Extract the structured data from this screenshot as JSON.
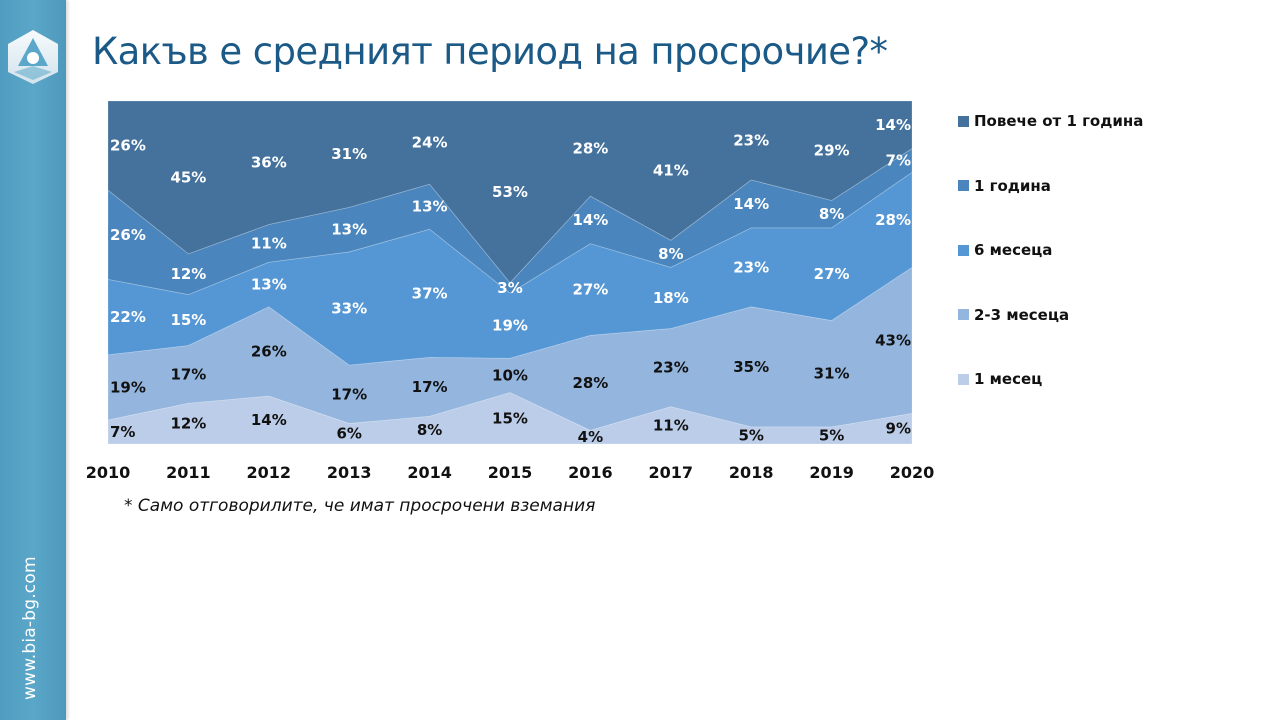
{
  "slide": {
    "title": "Какъв е средният период на просрочие?*",
    "footnote": "* Само отговорилите, че имат просрочени вземания",
    "site_url": "www.bia-bg.com",
    "logo_icon": "bia-logo-icon",
    "sidebar_color": "#5aa7c9",
    "title_color": "#1b5a86"
  },
  "chart_data": {
    "type": "area",
    "stacked": "percent",
    "title": "Какъв е средният период на просрочие?*",
    "xlabel": "",
    "ylabel": "",
    "ylim": [
      0,
      100
    ],
    "grid": false,
    "legend_position": "right",
    "categories": [
      "2010",
      "2011",
      "2012",
      "2013",
      "2014",
      "2015",
      "2016",
      "2017",
      "2018",
      "2019",
      "2020"
    ],
    "series": [
      {
        "name": "1 месец",
        "color": "#bccde9",
        "label_color": "#111111",
        "values": [
          7,
          12,
          14,
          6,
          8,
          15,
          4,
          11,
          5,
          5,
          9
        ],
        "labels": [
          "7%",
          "12%",
          "14%",
          "6%",
          "8%",
          "15%",
          "4%",
          "11%",
          "5%",
          "5%",
          "9%"
        ]
      },
      {
        "name": "2-3 месеца",
        "color": "#93b5de",
        "label_color": "#111111",
        "values": [
          19,
          17,
          26,
          17,
          17,
          10,
          28,
          23,
          35,
          31,
          43
        ],
        "labels": [
          "19%",
          "17%",
          "26%",
          "17%",
          "17%",
          "10%",
          "28%",
          "23%",
          "35%",
          "31%",
          "43%"
        ]
      },
      {
        "name": "6 месеца",
        "color": "#5597d4",
        "label_color": "#ffffff",
        "values": [
          22,
          15,
          13,
          33,
          37,
          19,
          27,
          18,
          23,
          27,
          28
        ],
        "labels": [
          "22%",
          "15%",
          "13%",
          "33%",
          "37%",
          "19%",
          "27%",
          "18%",
          "23%",
          "27%",
          "28%"
        ]
      },
      {
        "name": "1 година",
        "color": "#4a86bd",
        "label_color": "#ffffff",
        "values": [
          26,
          12,
          11,
          13,
          13,
          3,
          14,
          8,
          14,
          8,
          7
        ],
        "labels": [
          "26%",
          "12%",
          "11%",
          "13%",
          "13%",
          "3%",
          "14%",
          "8%",
          "14%",
          "8%",
          "7%"
        ]
      },
      {
        "name": "Повече от 1 година",
        "color": "#44729d",
        "label_color": "#ffffff",
        "values": [
          26,
          45,
          36,
          31,
          24,
          53,
          28,
          41,
          23,
          29,
          14
        ],
        "labels": [
          "26%",
          "45%",
          "36%",
          "31%",
          "24%",
          "53%",
          "28%",
          "41%",
          "23%",
          "29%",
          "14%"
        ]
      }
    ],
    "legend": [
      "Повече от 1 година",
      "1 година",
      "6 месеца",
      "2-3 месеца",
      "1 месец"
    ]
  }
}
